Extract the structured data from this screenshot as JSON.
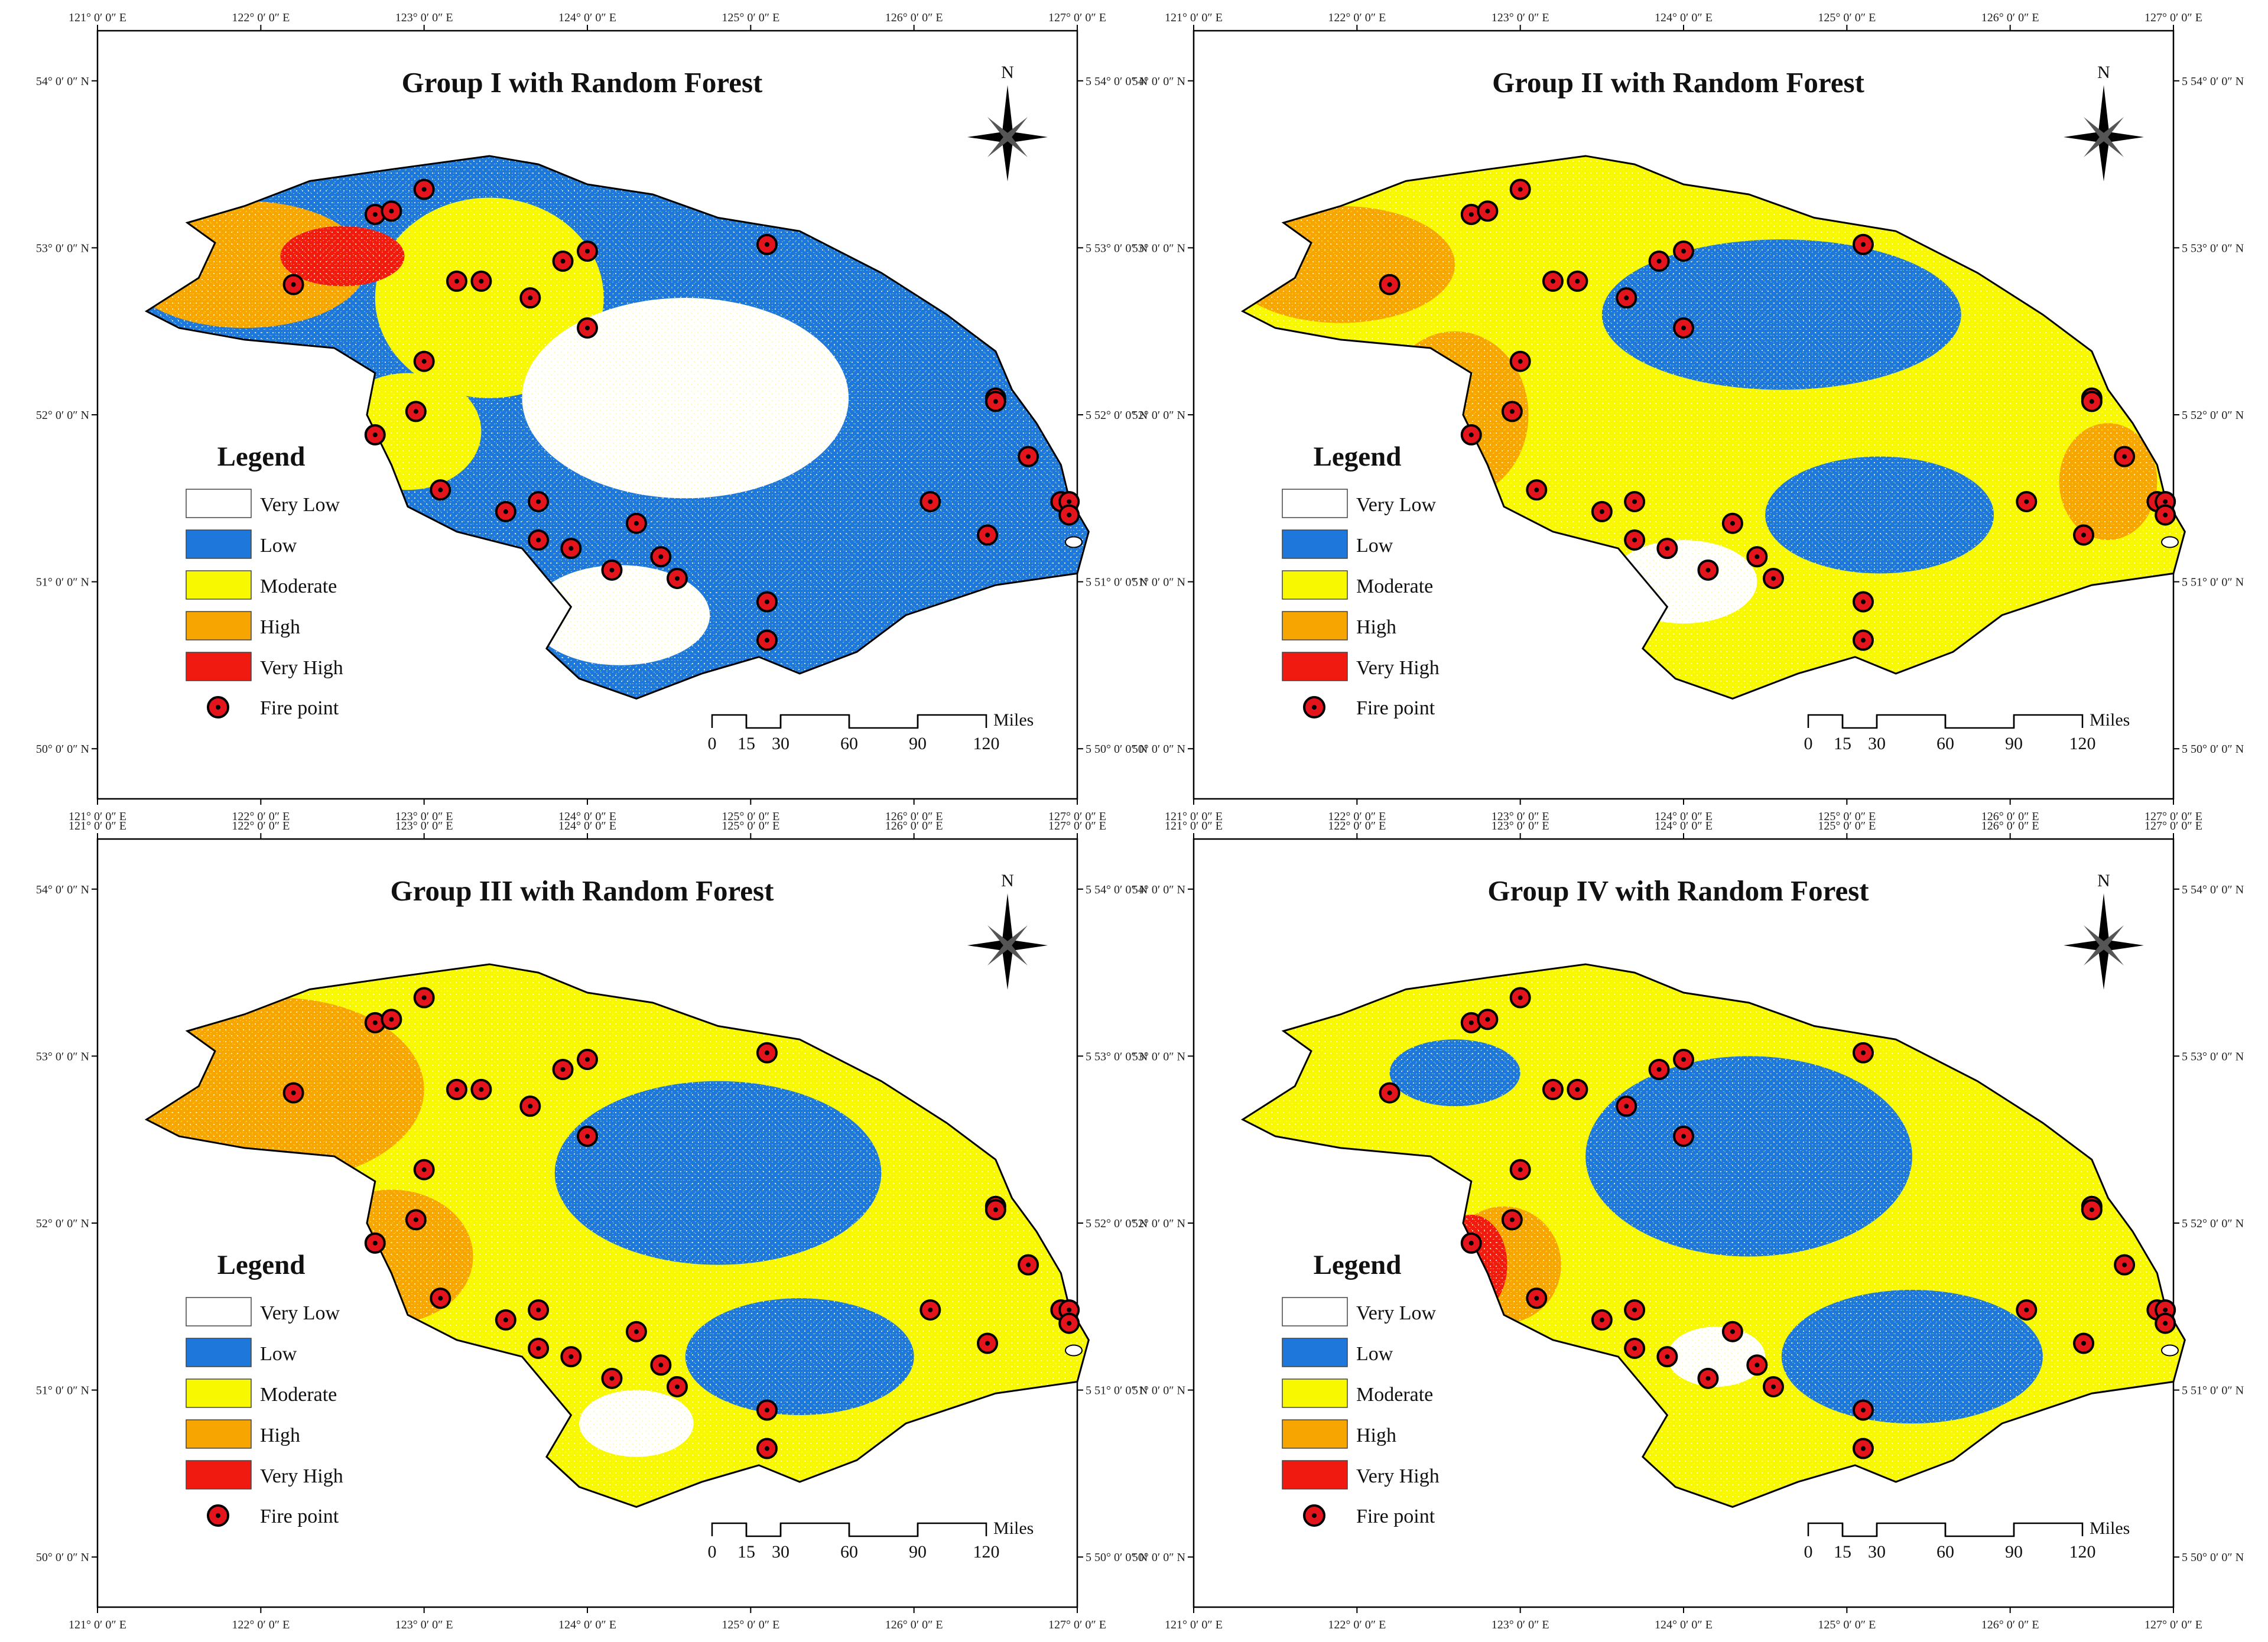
{
  "colors": {
    "very_low": "#ffffff",
    "low": "#1e78dc",
    "moderate": "#f8f800",
    "high": "#f7a500",
    "very_high": "#f01a10",
    "fire_point_fill": "#e3141c",
    "fire_point_ring": "#000000",
    "frame": "#000000"
  },
  "axes": {
    "x_ticks": [
      "121° 0′ 0″ E",
      "122° 0′ 0″ E",
      "123° 0′ 0″ E",
      "124° 0′ 0″ E",
      "125° 0′ 0″ E",
      "126° 0′ 0″ E",
      "127° 0′ 0″ E"
    ],
    "y_ticks_left": [
      "54° 0′ 0″ N",
      "53° 0′ 0″ N",
      "52° 0′ 0″ N",
      "51° 0′ 0″ N",
      "50° 0′ 0″ N"
    ],
    "y_ticks_right": [
      "5 54° 0′ 0″ N",
      "5 53° 0′ 0″ N",
      "5 52° 0′ 0″ N",
      "5 51° 0′ 0″ N",
      "5 50° 0′ 0″ N"
    ]
  },
  "north_arrow": {
    "label": "N",
    "icon": "compass-rose-icon"
  },
  "legend": {
    "title": "Legend",
    "items": [
      {
        "label": "Very Low",
        "color_key": "very_low"
      },
      {
        "label": "Low",
        "color_key": "low"
      },
      {
        "label": "Moderate",
        "color_key": "moderate"
      },
      {
        "label": "High",
        "color_key": "high"
      },
      {
        "label": "Very High",
        "color_key": "very_high"
      }
    ],
    "fire_point_label": "Fire point"
  },
  "scale_bar": {
    "ticks": [
      "0",
      "15",
      "30",
      "60",
      "90",
      "120"
    ],
    "unit": "Miles"
  },
  "panels": [
    {
      "id": "group-1",
      "title": "Group I with Random Forest",
      "base_class": "low",
      "patches": [
        {
          "cls": "high",
          "lon": 121.9,
          "lat": 52.9,
          "rlon": 0.75,
          "rlat": 0.38
        },
        {
          "cls": "moderate",
          "lon": 123.4,
          "lat": 52.7,
          "rlon": 0.7,
          "rlat": 0.6
        },
        {
          "cls": "moderate",
          "lon": 122.9,
          "lat": 51.9,
          "rlon": 0.45,
          "rlat": 0.35
        },
        {
          "cls": "very_low",
          "lon": 124.6,
          "lat": 52.1,
          "rlon": 1.0,
          "rlat": 0.6
        },
        {
          "cls": "very_low",
          "lon": 124.2,
          "lat": 50.8,
          "rlon": 0.55,
          "rlat": 0.3
        },
        {
          "cls": "very_high",
          "lon": 122.5,
          "lat": 52.95,
          "rlon": 0.38,
          "rlat": 0.18
        }
      ]
    },
    {
      "id": "group-2",
      "title": "Group II with Random Forest",
      "base_class": "moderate",
      "patches": [
        {
          "cls": "high",
          "lon": 121.9,
          "lat": 52.9,
          "rlon": 0.7,
          "rlat": 0.35
        },
        {
          "cls": "high",
          "lon": 122.6,
          "lat": 52.0,
          "rlon": 0.45,
          "rlat": 0.5
        },
        {
          "cls": "low",
          "lon": 124.6,
          "lat": 52.6,
          "rlon": 1.1,
          "rlat": 0.45
        },
        {
          "cls": "low",
          "lon": 125.2,
          "lat": 51.4,
          "rlon": 0.7,
          "rlat": 0.35
        },
        {
          "cls": "very_low",
          "lon": 124.0,
          "lat": 51.0,
          "rlon": 0.45,
          "rlat": 0.25
        },
        {
          "cls": "high",
          "lon": 126.6,
          "lat": 51.6,
          "rlon": 0.3,
          "rlat": 0.35
        }
      ]
    },
    {
      "id": "group-3",
      "title": "Group III with Random Forest",
      "base_class": "moderate",
      "patches": [
        {
          "cls": "high",
          "lon": 122.1,
          "lat": 52.8,
          "rlon": 0.9,
          "rlat": 0.55
        },
        {
          "cls": "high",
          "lon": 122.8,
          "lat": 51.8,
          "rlon": 0.5,
          "rlat": 0.4
        },
        {
          "cls": "low",
          "lon": 124.8,
          "lat": 52.3,
          "rlon": 1.0,
          "rlat": 0.55
        },
        {
          "cls": "low",
          "lon": 125.3,
          "lat": 51.2,
          "rlon": 0.7,
          "rlat": 0.35
        },
        {
          "cls": "very_low",
          "lon": 124.3,
          "lat": 50.8,
          "rlon": 0.35,
          "rlat": 0.2
        }
      ]
    },
    {
      "id": "group-4",
      "title": "Group IV with Random Forest",
      "base_class": "moderate",
      "patches": [
        {
          "cls": "low",
          "lon": 124.4,
          "lat": 52.4,
          "rlon": 1.0,
          "rlat": 0.6
        },
        {
          "cls": "low",
          "lon": 125.4,
          "lat": 51.2,
          "rlon": 0.8,
          "rlat": 0.4
        },
        {
          "cls": "low",
          "lon": 122.6,
          "lat": 52.9,
          "rlon": 0.4,
          "rlat": 0.2
        },
        {
          "cls": "high",
          "lon": 122.9,
          "lat": 51.75,
          "rlon": 0.35,
          "rlat": 0.35
        },
        {
          "cls": "very_high",
          "lon": 122.7,
          "lat": 51.75,
          "rlon": 0.22,
          "rlat": 0.3
        },
        {
          "cls": "very_low",
          "lon": 124.2,
          "lat": 51.2,
          "rlon": 0.3,
          "rlat": 0.18
        }
      ]
    }
  ],
  "fire_points": [
    [
      122.7,
      53.2
    ],
    [
      122.8,
      53.22
    ],
    [
      123.0,
      53.35
    ],
    [
      122.2,
      52.78
    ],
    [
      123.2,
      52.8
    ],
    [
      123.35,
      52.8
    ],
    [
      123.65,
      52.7
    ],
    [
      123.85,
      52.92
    ],
    [
      124.0,
      52.98
    ],
    [
      125.1,
      53.02
    ],
    [
      124.0,
      52.52
    ],
    [
      123.0,
      52.32
    ],
    [
      122.95,
      52.02
    ],
    [
      122.7,
      51.88
    ],
    [
      123.1,
      51.55
    ],
    [
      123.5,
      51.42
    ],
    [
      123.7,
      51.48
    ],
    [
      123.7,
      51.25
    ],
    [
      123.9,
      51.2
    ],
    [
      124.3,
      51.35
    ],
    [
      124.15,
      51.07
    ],
    [
      124.45,
      51.15
    ],
    [
      124.55,
      51.02
    ],
    [
      125.1,
      50.88
    ],
    [
      125.1,
      50.65
    ],
    [
      126.1,
      51.48
    ],
    [
      126.5,
      52.1
    ],
    [
      126.5,
      52.08
    ],
    [
      126.7,
      51.75
    ],
    [
      126.9,
      51.48
    ],
    [
      126.95,
      51.48
    ],
    [
      126.95,
      51.4
    ],
    [
      126.45,
      51.28
    ]
  ]
}
